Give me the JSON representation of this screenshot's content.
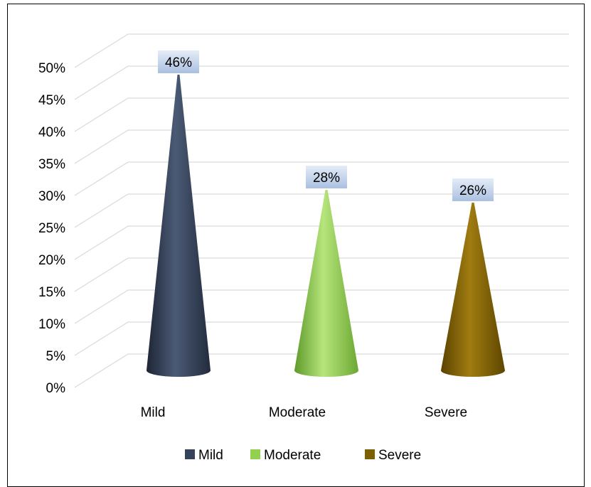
{
  "chart_data": {
    "type": "bar",
    "style": "3d-cone",
    "categories": [
      "Mild",
      "Moderate",
      "Severe"
    ],
    "values": [
      46,
      28,
      26
    ],
    "data_labels": [
      "46%",
      "28%",
      "26%"
    ],
    "y_ticks": [
      "0%",
      "5%",
      "10%",
      "15%",
      "20%",
      "25%",
      "30%",
      "35%",
      "40%",
      "45%",
      "50%"
    ],
    "ylim": [
      0,
      50
    ],
    "grid": true,
    "legend_position": "bottom",
    "legend": [
      {
        "name": "Mild",
        "color": "#36435a"
      },
      {
        "name": "Moderate",
        "color": "#92d050"
      },
      {
        "name": "Severe",
        "color": "#7f6000"
      }
    ],
    "colors": {
      "mild": "#36435a",
      "moderate": "#92d050",
      "severe": "#7f6000",
      "data_label_bg": "#c5d5ea",
      "grid": "#d9d9d9"
    }
  }
}
